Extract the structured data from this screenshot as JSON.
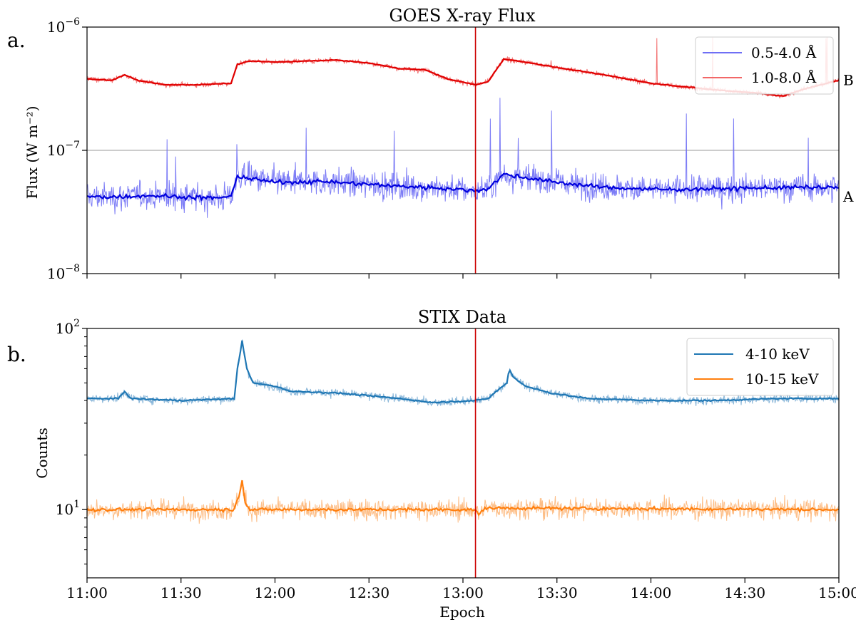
{
  "chart_data": [
    {
      "type": "line",
      "panel_label": "a.",
      "title": "GOES X-ray Flux",
      "ylabel": "Flux (W m⁻²)",
      "yscale": "log",
      "ylim": [
        1e-08,
        1e-06
      ],
      "yticks": [
        {
          "value": 1e-08,
          "mantissa": "10",
          "exp": "−8"
        },
        {
          "value": 1e-07,
          "mantissa": "10",
          "exp": "−7"
        },
        {
          "value": 1e-06,
          "mantissa": "10",
          "exp": "−6"
        }
      ],
      "reference_lines": [
        {
          "value": 1e-07,
          "color": "#999999"
        }
      ],
      "level_markers": [
        {
          "label": "B",
          "value": 3.7e-07
        },
        {
          "label": "A",
          "value": 4.2e-08
        }
      ],
      "xlim": [
        0,
        240
      ],
      "x_unit": "minutes after 11:00",
      "vline_minute": 124,
      "vline_color": "#cc0000",
      "legend": {
        "position": "top-right"
      },
      "series": [
        {
          "name": "0.5-4.0 Å",
          "raw_color": "#6f6ff5",
          "smooth_color": "#0000dd",
          "noise": 0.33,
          "spike_prob": 0.012,
          "spike_max": 0.6,
          "points": [
            [
              0,
              4.2e-08
            ],
            [
              10,
              4.2e-08
            ],
            [
              20,
              4.3e-08
            ],
            [
              40,
              4.1e-08
            ],
            [
              46,
              4.2e-08
            ],
            [
              48,
              6.2e-08
            ],
            [
              52,
              5.9e-08
            ],
            [
              60,
              5.5e-08
            ],
            [
              75,
              5.6e-08
            ],
            [
              90,
              5.3e-08
            ],
            [
              100,
              5.1e-08
            ],
            [
              110,
              5e-08
            ],
            [
              124,
              4.7e-08
            ],
            [
              128,
              4.9e-08
            ],
            [
              133,
              6.4e-08
            ],
            [
              140,
              6e-08
            ],
            [
              150,
              5.5e-08
            ],
            [
              165,
              5e-08
            ],
            [
              185,
              4.8e-08
            ],
            [
              205,
              4.9e-08
            ],
            [
              225,
              5e-08
            ],
            [
              240,
              5e-08
            ]
          ]
        },
        {
          "name": "1.0-8.0 Å",
          "raw_color": "#f26767",
          "smooth_color": "#e00000",
          "noise": 0.06,
          "spike_prob": 0.004,
          "spike_max": 0.35,
          "points": [
            [
              0,
              3.8e-07
            ],
            [
              8,
              3.7e-07
            ],
            [
              12,
              4.1e-07
            ],
            [
              16,
              3.7e-07
            ],
            [
              25,
              3.4e-07
            ],
            [
              35,
              3.4e-07
            ],
            [
              46,
              3.5e-07
            ],
            [
              48,
              5e-07
            ],
            [
              52,
              5.3e-07
            ],
            [
              60,
              5.2e-07
            ],
            [
              80,
              5.4e-07
            ],
            [
              90,
              5.1e-07
            ],
            [
              100,
              4.6e-07
            ],
            [
              108,
              4.5e-07
            ],
            [
              115,
              3.8e-07
            ],
            [
              124,
              3.4e-07
            ],
            [
              128,
              3.6e-07
            ],
            [
              133,
              5.5e-07
            ],
            [
              140,
              5.2e-07
            ],
            [
              150,
              4.7e-07
            ],
            [
              165,
              4.1e-07
            ],
            [
              180,
              3.5e-07
            ],
            [
              200,
              3.1e-07
            ],
            [
              215,
              2.9e-07
            ],
            [
              222,
              2.75e-07
            ],
            [
              230,
              3.2e-07
            ],
            [
              240,
              3.7e-07
            ]
          ]
        }
      ]
    },
    {
      "type": "line",
      "panel_label": "b.",
      "title": "STIX Data",
      "ylabel": "Counts",
      "xlabel": "Epoch",
      "yscale": "log",
      "ylim": [
        4.2,
        100
      ],
      "yticks": [
        {
          "value": 10,
          "mantissa": "10",
          "exp": "1"
        },
        {
          "value": 100,
          "mantissa": "10",
          "exp": "2"
        }
      ],
      "minor_yticks": [
        5,
        6,
        7,
        8,
        9,
        20,
        30,
        40,
        50,
        60,
        70,
        80,
        90
      ],
      "xlim": [
        0,
        240
      ],
      "xticks": [
        {
          "value": 0,
          "label": "11:00"
        },
        {
          "value": 30,
          "label": "11:30"
        },
        {
          "value": 60,
          "label": "12:00"
        },
        {
          "value": 90,
          "label": "12:30"
        },
        {
          "value": 120,
          "label": "13:00"
        },
        {
          "value": 150,
          "label": "13:30"
        },
        {
          "value": 180,
          "label": "14:00"
        },
        {
          "value": 210,
          "label": "14:30"
        },
        {
          "value": 240,
          "label": "15:00"
        }
      ],
      "vline_minute": 124,
      "vline_color": "#cc0000",
      "legend": {
        "position": "top-right"
      },
      "series": [
        {
          "name": "4-10 keV",
          "raw_color": "#7fb0d6",
          "smooth_color": "#1f77b4",
          "noise": 0.07,
          "spike_prob": 0.0,
          "spike_max": 0,
          "points": [
            [
              0,
              41
            ],
            [
              10,
              41
            ],
            [
              12,
              45
            ],
            [
              14,
              41
            ],
            [
              30,
              40
            ],
            [
              47,
              41
            ],
            [
              48,
              60
            ],
            [
              49.5,
              85
            ],
            [
              51,
              60
            ],
            [
              53,
              50
            ],
            [
              60,
              48
            ],
            [
              65,
              45
            ],
            [
              80,
              44
            ],
            [
              100,
              41
            ],
            [
              110,
              39
            ],
            [
              124,
              40
            ],
            [
              128,
              41
            ],
            [
              130,
              44
            ],
            [
              134,
              50
            ],
            [
              134.8,
              60
            ],
            [
              136,
              54
            ],
            [
              140,
              48
            ],
            [
              148,
              44
            ],
            [
              160,
              41
            ],
            [
              180,
              40
            ],
            [
              200,
              40
            ],
            [
              220,
              41
            ],
            [
              240,
              41
            ]
          ]
        },
        {
          "name": "10-15 keV",
          "raw_color": "#fdb77a",
          "smooth_color": "#ff7f0e",
          "noise": 0.17,
          "spike_prob": 0.0,
          "spike_max": 0,
          "points": [
            [
              0,
              10
            ],
            [
              47,
              10
            ],
            [
              48.5,
              12
            ],
            [
              49.5,
              14.5
            ],
            [
              50.5,
              11
            ],
            [
              52,
              10
            ],
            [
              124,
              10
            ],
            [
              125,
              9.3
            ],
            [
              127,
              10.2
            ],
            [
              240,
              10
            ]
          ]
        }
      ]
    }
  ]
}
